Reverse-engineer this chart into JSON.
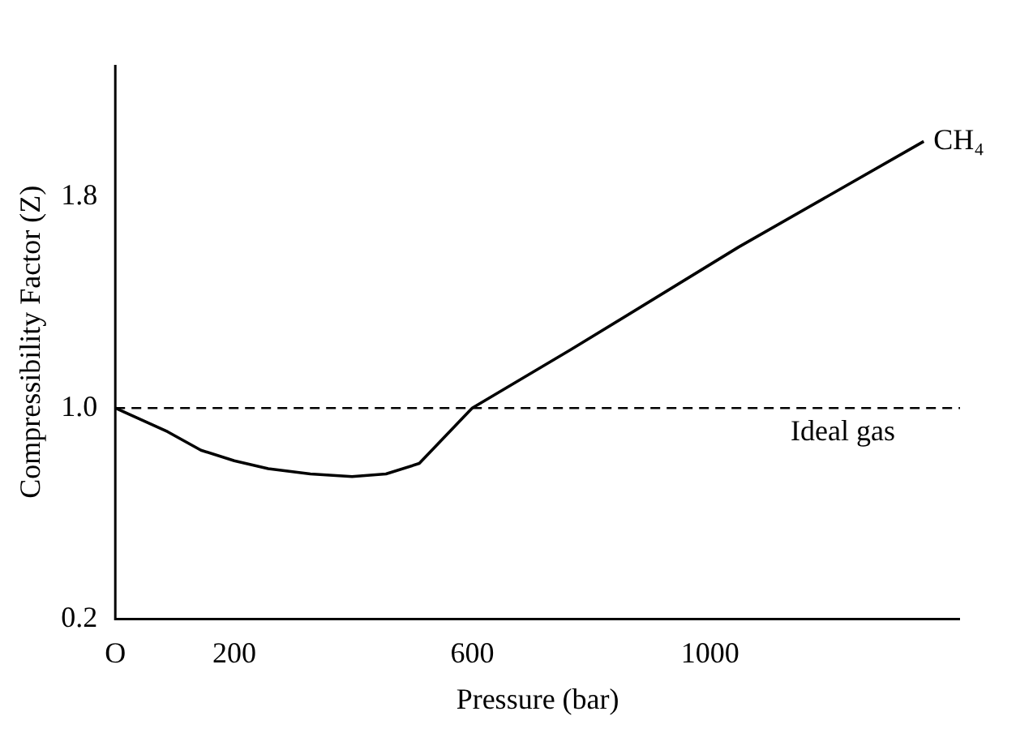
{
  "chart_data": {
    "type": "line",
    "xlabel": "Pressure (bar)",
    "ylabel": "Compressibility Factor (Z)",
    "x": [
      0,
      88,
      144,
      200,
      257,
      328,
      398,
      455,
      511,
      600,
      765,
      1048,
      1359
    ],
    "series": [
      {
        "name": "CH₄",
        "color": "#000000",
        "values": [
          1.0,
          0.91,
          0.84,
          0.8,
          0.77,
          0.75,
          0.74,
          0.75,
          0.79,
          1.0,
          1.22,
          1.61,
          2.01
        ]
      }
    ],
    "xlim": [
      0,
      1420
    ],
    "xticks": [
      {
        "value": 0,
        "label": "O"
      },
      200,
      600,
      1000
    ],
    "ylim": [
      0.2,
      2.3
    ],
    "yticks": [
      {
        "value": 0.2,
        "label": "0.2"
      },
      {
        "value": 1.0,
        "label": "1.0"
      },
      {
        "value": 1.8,
        "label": "1.8"
      }
    ],
    "ref_lines": [
      {
        "axis": "y",
        "value": 1.0,
        "label": "Ideal gas",
        "line_style": "dashed",
        "color": "#000000"
      }
    ],
    "grid": false,
    "legend": false,
    "marker": "none",
    "line_style": "solid"
  }
}
